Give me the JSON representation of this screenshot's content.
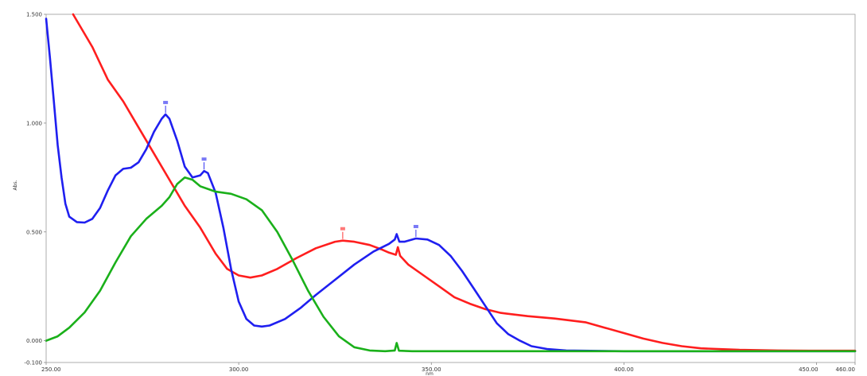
{
  "chart_data": {
    "type": "line",
    "title": "",
    "xlabel": "nm",
    "ylabel": "Abs.",
    "xlim": [
      250,
      460
    ],
    "ylim": [
      -0.1,
      1.5
    ],
    "x_ticks": [
      "250.00",
      "300.00",
      "350.00",
      "400.00",
      "450.00",
      "460.00"
    ],
    "x_tick_values": [
      250,
      300,
      350,
      400,
      450,
      460
    ],
    "y_ticks": [
      "-0.100",
      "0.000",
      "0.500",
      "1.000",
      "1.500"
    ],
    "y_tick_values": [
      -0.1,
      0.0,
      0.5,
      1.0,
      1.5
    ],
    "grid": false,
    "series": [
      {
        "color": "#ff1e1e",
        "points": [
          [
            257,
            1.5
          ],
          [
            262,
            1.35
          ],
          [
            266,
            1.2
          ],
          [
            270,
            1.1
          ],
          [
            274,
            0.98
          ],
          [
            278,
            0.86
          ],
          [
            282,
            0.74
          ],
          [
            286,
            0.62
          ],
          [
            290,
            0.52
          ],
          [
            294,
            0.4
          ],
          [
            297,
            0.33
          ],
          [
            300,
            0.3
          ],
          [
            303,
            0.29
          ],
          [
            306,
            0.3
          ],
          [
            310,
            0.33
          ],
          [
            315,
            0.38
          ],
          [
            320,
            0.425
          ],
          [
            325,
            0.455
          ],
          [
            327,
            0.46
          ],
          [
            330,
            0.455
          ],
          [
            334,
            0.44
          ],
          [
            337,
            0.42
          ],
          [
            339,
            0.405
          ],
          [
            340.8,
            0.395
          ],
          [
            341.3,
            0.43
          ],
          [
            341.9,
            0.39
          ],
          [
            344,
            0.35
          ],
          [
            348,
            0.3
          ],
          [
            352,
            0.25
          ],
          [
            356,
            0.2
          ],
          [
            360,
            0.17
          ],
          [
            364,
            0.145
          ],
          [
            368,
            0.128
          ],
          [
            375,
            0.113
          ],
          [
            382,
            0.102
          ],
          [
            390,
            0.085
          ],
          [
            395,
            0.06
          ],
          [
            400,
            0.035
          ],
          [
            405,
            0.01
          ],
          [
            410,
            -0.01
          ],
          [
            415,
            -0.025
          ],
          [
            420,
            -0.035
          ],
          [
            430,
            -0.042
          ],
          [
            440,
            -0.045
          ],
          [
            450,
            -0.046
          ],
          [
            460,
            -0.046
          ]
        ]
      },
      {
        "color": "#1f1ff0",
        "points": [
          [
            250,
            1.48
          ],
          [
            251,
            1.3
          ],
          [
            252,
            1.1
          ],
          [
            253,
            0.9
          ],
          [
            254,
            0.75
          ],
          [
            255,
            0.63
          ],
          [
            256,
            0.57
          ],
          [
            258,
            0.545
          ],
          [
            260,
            0.543
          ],
          [
            262,
            0.56
          ],
          [
            264,
            0.61
          ],
          [
            266,
            0.69
          ],
          [
            268,
            0.76
          ],
          [
            270,
            0.79
          ],
          [
            272,
            0.795
          ],
          [
            274,
            0.82
          ],
          [
            276,
            0.88
          ],
          [
            278,
            0.96
          ],
          [
            280,
            1.02
          ],
          [
            281,
            1.04
          ],
          [
            282,
            1.02
          ],
          [
            284,
            0.92
          ],
          [
            286,
            0.8
          ],
          [
            288,
            0.75
          ],
          [
            290,
            0.76
          ],
          [
            291,
            0.78
          ],
          [
            292,
            0.77
          ],
          [
            294,
            0.68
          ],
          [
            296,
            0.52
          ],
          [
            298,
            0.33
          ],
          [
            300,
            0.18
          ],
          [
            302,
            0.1
          ],
          [
            304,
            0.07
          ],
          [
            306,
            0.065
          ],
          [
            308,
            0.07
          ],
          [
            312,
            0.1
          ],
          [
            316,
            0.15
          ],
          [
            320,
            0.21
          ],
          [
            325,
            0.28
          ],
          [
            330,
            0.35
          ],
          [
            335,
            0.41
          ],
          [
            339,
            0.445
          ],
          [
            340.5,
            0.465
          ],
          [
            341,
            0.49
          ],
          [
            341.7,
            0.455
          ],
          [
            343,
            0.455
          ],
          [
            346,
            0.47
          ],
          [
            349,
            0.465
          ],
          [
            352,
            0.44
          ],
          [
            355,
            0.39
          ],
          [
            358,
            0.32
          ],
          [
            361,
            0.24
          ],
          [
            364,
            0.16
          ],
          [
            367,
            0.08
          ],
          [
            370,
            0.03
          ],
          [
            373,
            0.0
          ],
          [
            376,
            -0.025
          ],
          [
            380,
            -0.038
          ],
          [
            385,
            -0.045
          ],
          [
            400,
            -0.048
          ],
          [
            460,
            -0.048
          ]
        ]
      },
      {
        "color": "#1ab01a",
        "points": [
          [
            250,
            0.0
          ],
          [
            253,
            0.02
          ],
          [
            256,
            0.06
          ],
          [
            260,
            0.13
          ],
          [
            264,
            0.23
          ],
          [
            268,
            0.36
          ],
          [
            272,
            0.48
          ],
          [
            276,
            0.56
          ],
          [
            280,
            0.62
          ],
          [
            282,
            0.66
          ],
          [
            284,
            0.72
          ],
          [
            286,
            0.75
          ],
          [
            288,
            0.74
          ],
          [
            290,
            0.71
          ],
          [
            294,
            0.685
          ],
          [
            298,
            0.675
          ],
          [
            302,
            0.65
          ],
          [
            306,
            0.6
          ],
          [
            310,
            0.5
          ],
          [
            314,
            0.37
          ],
          [
            318,
            0.23
          ],
          [
            322,
            0.11
          ],
          [
            326,
            0.02
          ],
          [
            330,
            -0.03
          ],
          [
            334,
            -0.045
          ],
          [
            338,
            -0.048
          ],
          [
            340.5,
            -0.045
          ],
          [
            341,
            -0.01
          ],
          [
            341.6,
            -0.046
          ],
          [
            345,
            -0.048
          ],
          [
            360,
            -0.048
          ],
          [
            400,
            -0.048
          ],
          [
            460,
            -0.048
          ]
        ]
      }
    ],
    "peak_markers": [
      {
        "color": "#1f1ff0",
        "x": 281,
        "y": 1.04
      },
      {
        "color": "#1f1ff0",
        "x": 291,
        "y": 0.78
      },
      {
        "color": "#ff1e1e",
        "x": 327,
        "y": 0.46
      },
      {
        "color": "#1f1ff0",
        "x": 346,
        "y": 0.47
      }
    ]
  }
}
